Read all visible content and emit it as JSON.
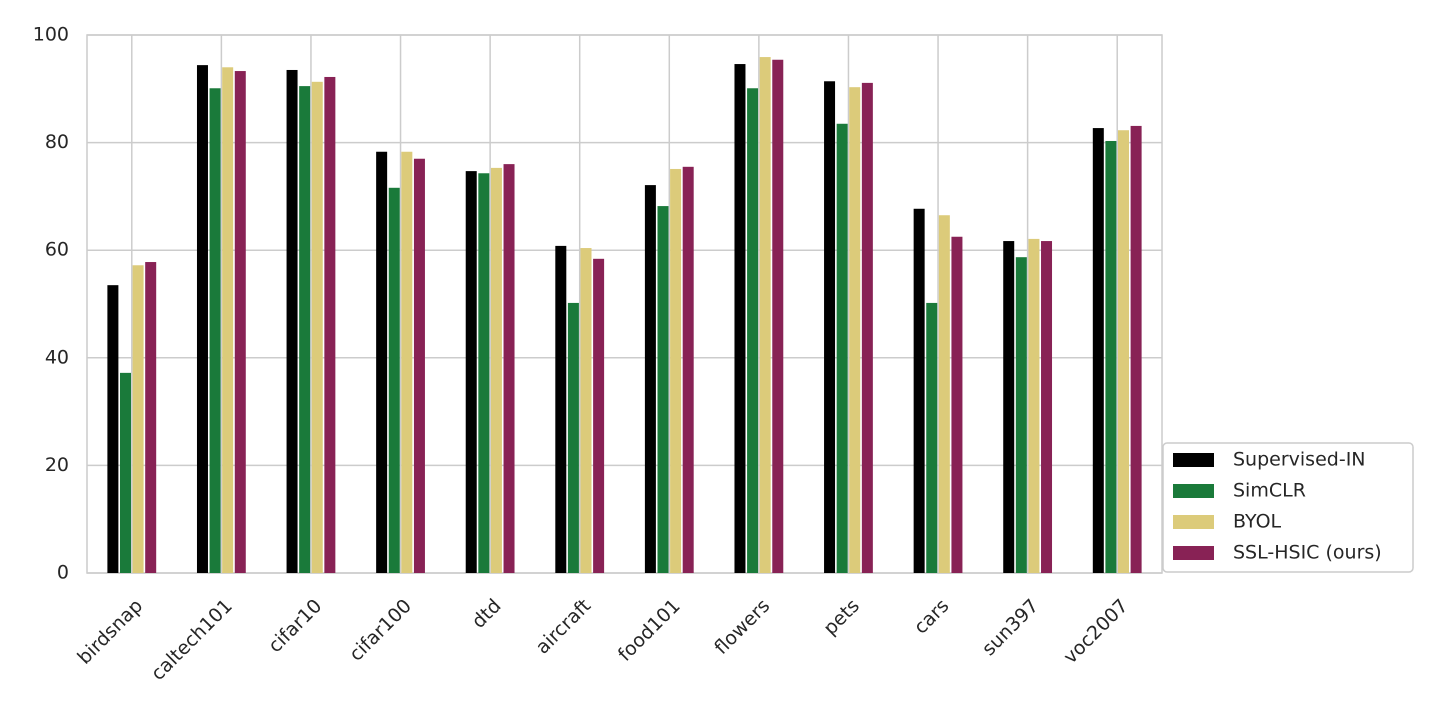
{
  "chart_data": {
    "type": "bar",
    "categories": [
      "birdsnap",
      "caltech101",
      "cifar10",
      "cifar100",
      "dtd",
      "aircraft",
      "food101",
      "flowers",
      "pets",
      "cars",
      "sun397",
      "voc2007"
    ],
    "series": [
      {
        "name": "Supervised-IN",
        "color": "#000000",
        "values": [
          53.5,
          94.4,
          93.5,
          78.3,
          74.7,
          60.8,
          72.1,
          94.6,
          91.4,
          67.7,
          61.7,
          82.7
        ]
      },
      {
        "name": "SimCLR",
        "color": "#1a7a3a",
        "values": [
          37.2,
          90.1,
          90.5,
          71.6,
          74.3,
          50.2,
          68.2,
          90.1,
          83.5,
          50.2,
          58.7,
          80.3
        ]
      },
      {
        "name": "BYOL",
        "color": "#dccb7a",
        "values": [
          57.2,
          94.0,
          91.3,
          78.3,
          75.3,
          60.4,
          75.1,
          95.9,
          90.3,
          66.5,
          62.1,
          82.3
        ]
      },
      {
        "name": "SSL-HSIC (ours)",
        "color": "#882255",
        "values": [
          57.8,
          93.3,
          92.2,
          77.0,
          76.0,
          58.4,
          75.5,
          95.4,
          91.1,
          62.5,
          61.7,
          83.1
        ]
      }
    ],
    "ylim": [
      0,
      100
    ],
    "yticks": [
      0,
      20,
      40,
      60,
      80,
      100
    ],
    "grid": true,
    "legend": "lower right"
  }
}
